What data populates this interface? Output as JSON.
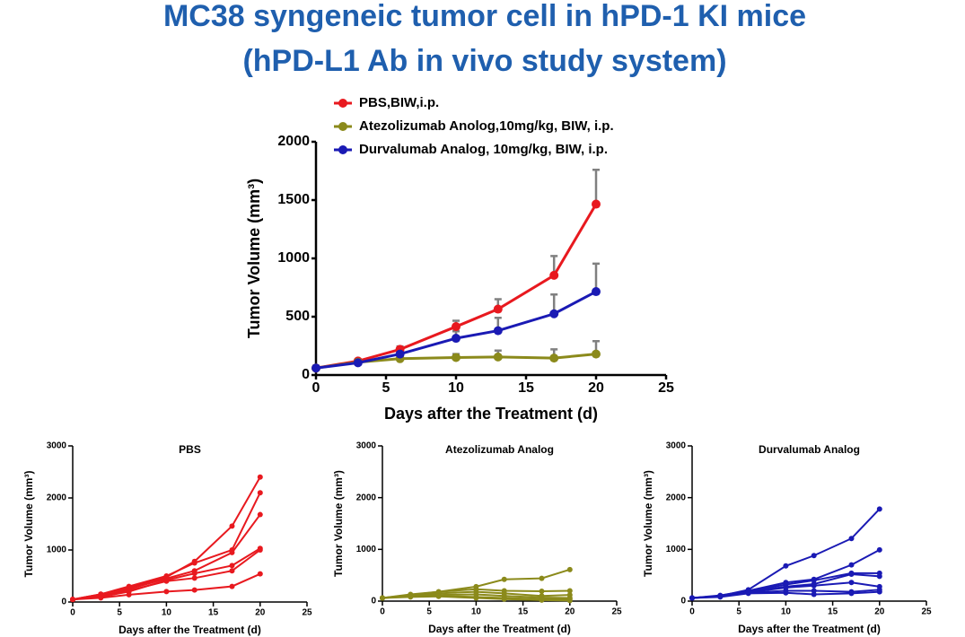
{
  "title": [
    "MC38 syngeneic tumor cell in hPD-1 KI mice",
    "(hPD-L1 Ab in vivo study system)"
  ],
  "chart_data": [
    {
      "type": "line",
      "legend": "top",
      "xlabel": "Days after the Treatment (d)",
      "ylabel": "Tumor Volume (mm³)",
      "x": [
        0,
        3,
        6,
        10,
        13,
        17,
        20
      ],
      "xlim": [
        0,
        25
      ],
      "xticks": [
        0,
        5,
        10,
        15,
        20,
        25
      ],
      "ylim": [
        0,
        2000
      ],
      "yticks": [
        0,
        500,
        1000,
        1500,
        2000
      ],
      "series": [
        {
          "name": "PBS,BIW,i.p.",
          "color": "#e8191f",
          "values": [
            60,
            120,
            220,
            415,
            565,
            855,
            1465
          ],
          "errors": [
            10,
            15,
            25,
            50,
            85,
            165,
            295
          ]
        },
        {
          "name": "Atezolizumab Anolog,10mg/kg, BIW, i.p.",
          "color": "#8b8a1b",
          "values": [
            60,
            110,
            140,
            150,
            155,
            145,
            180
          ],
          "errors": [
            10,
            15,
            20,
            30,
            55,
            75,
            110
          ]
        },
        {
          "name": "Durvalumab  Analog, 10mg/kg, BIW, i.p.",
          "color": "#1a1ab4",
          "values": [
            60,
            105,
            180,
            315,
            380,
            525,
            715
          ],
          "errors": [
            10,
            15,
            30,
            60,
            110,
            165,
            240
          ]
        }
      ]
    },
    {
      "type": "line",
      "title": "PBS",
      "xlabel": "Days after the Treatment (d)",
      "ylabel": "Tumor Volume (mm³)",
      "x": [
        0,
        3,
        6,
        10,
        13,
        17,
        20
      ],
      "xlim": [
        0,
        25
      ],
      "xticks": [
        0,
        5,
        10,
        15,
        20,
        25
      ],
      "ylim": [
        0,
        3000
      ],
      "yticks": [
        0,
        1000,
        2000,
        3000
      ],
      "series": [
        {
          "color": "#e8191f",
          "values": [
            50,
            150,
            280,
            480,
            780,
            1460,
            2400
          ]
        },
        {
          "color": "#e8191f",
          "values": [
            50,
            150,
            300,
            500,
            750,
            1000,
            2100
          ]
        },
        {
          "color": "#e8191f",
          "values": [
            50,
            120,
            250,
            450,
            600,
            950,
            1680
          ]
        },
        {
          "color": "#e8191f",
          "values": [
            50,
            100,
            200,
            420,
            550,
            700,
            1030
          ]
        },
        {
          "color": "#e8191f",
          "values": [
            50,
            100,
            220,
            400,
            460,
            600,
            1000
          ]
        },
        {
          "color": "#e8191f",
          "values": [
            50,
            80,
            140,
            200,
            230,
            300,
            540
          ]
        }
      ]
    },
    {
      "type": "line",
      "title": "Atezolizumab Analog",
      "xlabel": "Days after the Treatment (d)",
      "ylabel": "Tumor Volume (mm³)",
      "x": [
        0,
        3,
        6,
        10,
        13,
        17,
        20
      ],
      "xlim": [
        0,
        25
      ],
      "xticks": [
        0,
        5,
        10,
        15,
        20,
        25
      ],
      "ylim": [
        0,
        3000
      ],
      "yticks": [
        0,
        1000,
        2000,
        3000
      ],
      "series": [
        {
          "color": "#8b8a1b",
          "values": [
            60,
            120,
            180,
            280,
            420,
            440,
            610
          ]
        },
        {
          "color": "#8b8a1b",
          "values": [
            60,
            130,
            180,
            230,
            200,
            190,
            200
          ]
        },
        {
          "color": "#8b8a1b",
          "values": [
            60,
            110,
            150,
            180,
            150,
            100,
            120
          ]
        },
        {
          "color": "#8b8a1b",
          "values": [
            60,
            100,
            120,
            130,
            100,
            70,
            60
          ]
        },
        {
          "color": "#8b8a1b",
          "values": [
            60,
            90,
            100,
            80,
            60,
            40,
            40
          ]
        },
        {
          "color": "#8b8a1b",
          "values": [
            60,
            80,
            90,
            60,
            40,
            20,
            10
          ]
        }
      ]
    },
    {
      "type": "line",
      "title": "Durvalumab Analog",
      "xlabel": "Days after the Treatment (d)",
      "ylabel": "Tumor Volume (mm³)",
      "x": [
        0,
        3,
        6,
        10,
        13,
        17,
        20
      ],
      "xlim": [
        0,
        25
      ],
      "xticks": [
        0,
        5,
        10,
        15,
        20,
        25
      ],
      "ylim": [
        0,
        3000
      ],
      "yticks": [
        0,
        1000,
        2000,
        3000
      ],
      "series": [
        {
          "color": "#1a1ab4",
          "values": [
            60,
            100,
            220,
            680,
            880,
            1210,
            1780
          ]
        },
        {
          "color": "#1a1ab4",
          "values": [
            60,
            110,
            200,
            360,
            420,
            700,
            990
          ]
        },
        {
          "color": "#1a1ab4",
          "values": [
            60,
            100,
            190,
            320,
            400,
            540,
            540
          ]
        },
        {
          "color": "#1a1ab4",
          "values": [
            60,
            100,
            180,
            280,
            330,
            520,
            480
          ]
        },
        {
          "color": "#1a1ab4",
          "values": [
            60,
            90,
            170,
            260,
            300,
            360,
            280
          ]
        },
        {
          "color": "#1a1ab4",
          "values": [
            60,
            90,
            160,
            200,
            200,
            180,
            220
          ]
        },
        {
          "color": "#1a1ab4",
          "values": [
            60,
            80,
            150,
            160,
            130,
            150,
            180
          ]
        }
      ]
    }
  ]
}
